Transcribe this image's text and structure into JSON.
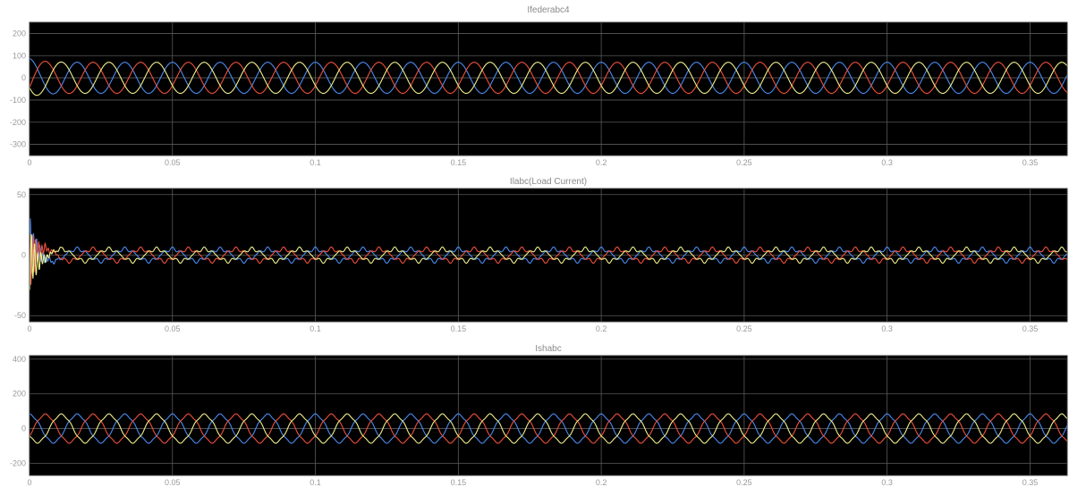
{
  "colors": {
    "background": "#ffffff",
    "plot_background": "#000000",
    "grid": "#5a5a5a",
    "text": "#8a8a8a",
    "phase_a": "#4a8cf0",
    "phase_b": "#f0503c",
    "phase_c": "#f0f08c"
  },
  "chart_data": [
    {
      "type": "line",
      "title": "Ifederabc4",
      "xlabel": "",
      "ylabel": "",
      "xlim": [
        0,
        0.363
      ],
      "ylim": [
        -350,
        250
      ],
      "x_ticks": [
        0,
        0.05,
        0.1,
        0.15,
        0.2,
        0.25,
        0.3,
        0.35
      ],
      "x_tick_labels": [
        "0",
        "0.05",
        "0.1",
        "0.15",
        "0.2",
        "0.25",
        "0.3",
        "0.35"
      ],
      "y_ticks": [
        200,
        100,
        0,
        -100,
        -200,
        -300
      ],
      "y_tick_labels": [
        "200",
        "100",
        "0",
        "-100",
        "-200",
        "-300"
      ],
      "grid": true,
      "frequency_hz": 60,
      "series": [
        {
          "amplitude": 70,
          "phase_deg": 90,
          "color": "#4a8cf0"
        },
        {
          "amplitude": 70,
          "phase_deg": -30,
          "color": "#f0503c"
        },
        {
          "amplitude": 70,
          "phase_deg": 210,
          "color": "#f0f08c"
        }
      ]
    },
    {
      "type": "line",
      "title": "Ilabc(Load Current)",
      "xlabel": "",
      "ylabel": "",
      "xlim": [
        0,
        0.363
      ],
      "ylim": [
        -55,
        55
      ],
      "x_ticks": [
        0,
        0.05,
        0.1,
        0.15,
        0.2,
        0.25,
        0.3,
        0.35
      ],
      "x_tick_labels": [
        "0",
        "0.05",
        "0.1",
        "0.15",
        "0.2",
        "0.25",
        "0.3",
        "0.35"
      ],
      "y_ticks": [
        50,
        0,
        -50
      ],
      "y_tick_labels": [
        "50",
        "0",
        "-50"
      ],
      "grid": true,
      "frequency_hz": 60,
      "startup_transient_peak": 27,
      "series": [
        {
          "amplitude": 5,
          "phase_deg": 90,
          "color": "#4a8cf0"
        },
        {
          "amplitude": 5,
          "phase_deg": -30,
          "color": "#f0503c"
        },
        {
          "amplitude": 5,
          "phase_deg": 210,
          "color": "#f0f08c"
        }
      ]
    },
    {
      "type": "line",
      "title": "Ishabc",
      "xlabel": "",
      "ylabel": "",
      "xlim": [
        0,
        0.363
      ],
      "ylim": [
        -270,
        420
      ],
      "x_ticks": [
        0,
        0.05,
        0.1,
        0.15,
        0.2,
        0.25,
        0.3,
        0.35
      ],
      "x_tick_labels": [
        "0",
        "0.05",
        "0.1",
        "0.15",
        "0.2",
        "0.25",
        "0.3",
        "0.35"
      ],
      "y_ticks": [
        400,
        200,
        0,
        -200
      ],
      "y_tick_labels": [
        "400",
        "200",
        "0",
        "-200"
      ],
      "grid": true,
      "frequency_hz": 60,
      "series": [
        {
          "amplitude": 80,
          "phase_deg": 90,
          "color": "#4a8cf0"
        },
        {
          "amplitude": 80,
          "phase_deg": -30,
          "color": "#f0503c"
        },
        {
          "amplitude": 80,
          "phase_deg": 210,
          "color": "#f0f08c"
        }
      ]
    }
  ]
}
